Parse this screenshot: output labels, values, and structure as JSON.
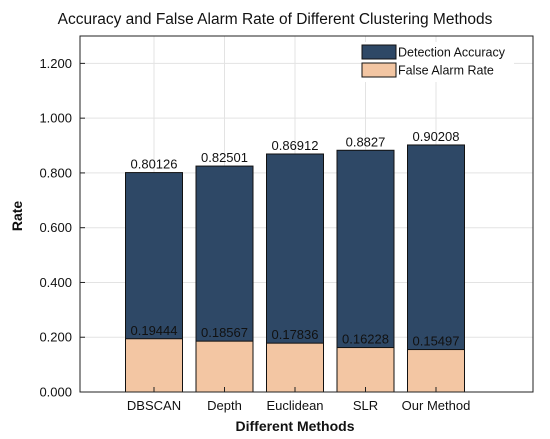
{
  "chart_data": {
    "type": "bar",
    "stacked": "overlay",
    "title": "Accuracy and False Alarm Rate of Different Clustering Methods",
    "xlabel": "Different Methods",
    "ylabel": "Rate",
    "categories": [
      "DBSCAN",
      "Depth",
      "Euclidean",
      "SLR",
      "Our Method"
    ],
    "series": [
      {
        "name": "Detection Accuracy",
        "color": "#2e4866",
        "values": [
          0.80126,
          0.82501,
          0.86912,
          0.8827,
          0.90208
        ],
        "labels": [
          "0.80126",
          "0.82501",
          "0.86912",
          "0.8827",
          "0.90208"
        ]
      },
      {
        "name": "False Alarm Rate",
        "color": "#f3c6a3",
        "values": [
          0.19444,
          0.18567,
          0.17836,
          0.16228,
          0.15497
        ],
        "labels": [
          "0.19444",
          "0.18567",
          "0.17836",
          "0.16228",
          "0.15497"
        ]
      }
    ],
    "ylim": [
      0,
      1.3
    ],
    "yticks": [
      0,
      0.2,
      0.4,
      0.6,
      0.8,
      1.0,
      1.2
    ],
    "ytick_labels": [
      "0.000",
      "0.200",
      "0.400",
      "0.600",
      "0.800",
      "1.000",
      "1.200"
    ],
    "grid": true,
    "legend_position": "top-right"
  }
}
